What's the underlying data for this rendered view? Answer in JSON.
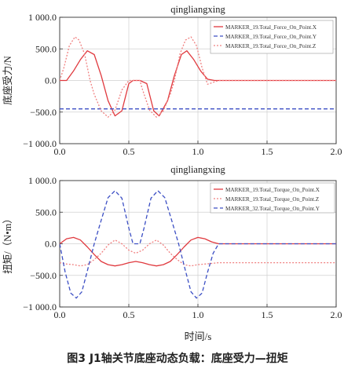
{
  "caption": "图3   J1轴关节底座动态负载：底座受力—扭矩",
  "chart_data": [
    {
      "type": "line",
      "title": "qingliangxing",
      "xlabel": "",
      "ylabel": "底座受力/N",
      "xlim": [
        0.0,
        2.0
      ],
      "ylim": [
        -1000.0,
        1000.0
      ],
      "x_ticks": [
        "0.0",
        "0.5",
        "1.0",
        "1.5",
        "2.0"
      ],
      "y_ticks": [
        "1 000.0",
        "500.0",
        "0.0",
        "−500.0",
        "−1 000.0"
      ],
      "grid": true,
      "legend_position": "top-right",
      "series": [
        {
          "name": "MARKER_19.Total_Force_On_Point.X",
          "color": "#e0393e",
          "style": "solid",
          "x": [
            0,
            0.05,
            0.1,
            0.15,
            0.2,
            0.25,
            0.3,
            0.35,
            0.4,
            0.45,
            0.5,
            0.53,
            0.58,
            0.63,
            0.68,
            0.72,
            0.78,
            0.83,
            0.88,
            0.92,
            0.97,
            1.02,
            1.07,
            1.12,
            1.15,
            2.0
          ],
          "y": [
            0,
            0,
            150,
            330,
            470,
            410,
            80,
            -320,
            -560,
            -480,
            -50,
            0,
            0,
            -50,
            -480,
            -560,
            -320,
            80,
            410,
            470,
            330,
            150,
            20,
            0,
            0,
            0
          ]
        },
        {
          "name": "MARKER_19.Total_Force_On_Point.Y",
          "color": "#3c4fc4",
          "style": "dashed",
          "x": [
            0,
            2.0
          ],
          "y": [
            -450,
            -450
          ]
        },
        {
          "name": "MARKER_19.Total_Force_On_Point.Z",
          "color": "#f08080",
          "style": "dotted",
          "x": [
            0,
            0.03,
            0.07,
            0.11,
            0.14,
            0.18,
            0.22,
            0.25,
            0.3,
            0.35,
            0.4,
            0.45,
            0.5,
            0.52,
            0.55,
            0.58,
            0.6,
            0.65,
            0.7,
            0.75,
            0.8,
            0.83,
            0.87,
            0.91,
            0.95,
            0.99,
            1.03,
            1.07,
            1.11,
            1.15,
            2.0
          ],
          "y": [
            0,
            200,
            550,
            690,
            640,
            420,
            0,
            -220,
            -480,
            -580,
            -470,
            -150,
            0,
            0,
            0,
            0,
            -150,
            -470,
            -580,
            -480,
            -220,
            0,
            420,
            640,
            690,
            550,
            200,
            -60,
            -30,
            0,
            0
          ]
        }
      ]
    },
    {
      "type": "line",
      "title": "qingliangxing",
      "xlabel": "时间/s",
      "ylabel": "扭矩/（N•m）",
      "xlim": [
        0.0,
        2.0
      ],
      "ylim": [
        -1000.0,
        1000.0
      ],
      "x_ticks": [
        "0.0",
        "0.5",
        "1.0",
        "1.5",
        "2.0"
      ],
      "y_ticks": [
        "1 000.0",
        "500.0",
        "0.0",
        "−500.0",
        "−1 000.0"
      ],
      "grid": true,
      "legend_position": "top-right",
      "series": [
        {
          "name": "MARKER_19.Total_Torque_On_Point.X",
          "color": "#e0393e",
          "style": "solid",
          "x": [
            0,
            0.05,
            0.1,
            0.15,
            0.2,
            0.25,
            0.3,
            0.35,
            0.4,
            0.45,
            0.5,
            0.55,
            0.6,
            0.65,
            0.7,
            0.75,
            0.8,
            0.85,
            0.9,
            0.95,
            1.0,
            1.05,
            1.1,
            1.15,
            2.0
          ],
          "y": [
            0,
            80,
            100,
            60,
            -50,
            -170,
            -280,
            -330,
            -350,
            -330,
            -300,
            -280,
            -300,
            -330,
            -350,
            -330,
            -280,
            -170,
            -50,
            60,
            100,
            80,
            30,
            0,
            0
          ]
        },
        {
          "name": "MARKER_19.Total_Torque_On_Point.Z",
          "color": "#f08080",
          "style": "dotted",
          "x": [
            0,
            0.05,
            0.1,
            0.15,
            0.2,
            0.25,
            0.3,
            0.35,
            0.4,
            0.45,
            0.5,
            0.55,
            0.6,
            0.65,
            0.7,
            0.75,
            0.8,
            0.85,
            0.9,
            0.95,
            1.0,
            1.05,
            1.1,
            1.15,
            2.0
          ],
          "y": [
            -300,
            -320,
            -330,
            -350,
            -330,
            -250,
            -150,
            -20,
            60,
            0,
            -100,
            -150,
            -100,
            0,
            60,
            -20,
            -150,
            -250,
            -330,
            -350,
            -330,
            -320,
            -310,
            -300,
            -300
          ]
        },
        {
          "name": "MARKER_32.Total_Torque_On_Point.Y",
          "color": "#3c4fc4",
          "style": "dashed",
          "x": [
            0,
            0.04,
            0.08,
            0.12,
            0.16,
            0.2,
            0.25,
            0.3,
            0.35,
            0.4,
            0.45,
            0.5,
            0.53,
            0.58,
            0.61,
            0.66,
            0.71,
            0.76,
            0.81,
            0.86,
            0.91,
            0.95,
            0.99,
            1.03,
            1.07,
            1.11,
            1.15,
            2.0
          ],
          "y": [
            0,
            -450,
            -780,
            -860,
            -760,
            -430,
            0,
            370,
            730,
            840,
            720,
            250,
            0,
            0,
            250,
            720,
            840,
            730,
            370,
            0,
            -430,
            -760,
            -860,
            -780,
            -450,
            -150,
            0,
            0
          ]
        }
      ]
    }
  ]
}
